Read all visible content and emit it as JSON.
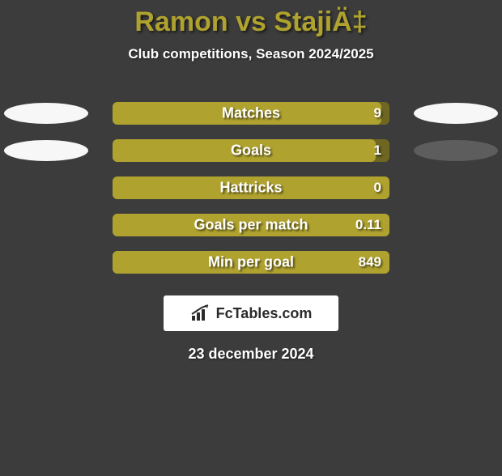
{
  "background_color": "#3c3c3c",
  "title": {
    "text": "Ramon vs StajiÄ‡",
    "color": "#afa22f",
    "fontsize": 34
  },
  "subtitle": {
    "text": "Club competitions, Season 2024/2025",
    "color": "#ffffff",
    "fontsize": 17
  },
  "bars": {
    "track_color": "#6f6721",
    "fill_color": "#afa22f",
    "label_color": "#ffffff",
    "value_color": "#ffffff",
    "rows": [
      {
        "label": "Matches",
        "value": "9",
        "fill_pct": 97,
        "left_ellipse": "#f7f7f7",
        "right_ellipse": "#f7f7f7"
      },
      {
        "label": "Goals",
        "value": "1",
        "fill_pct": 95,
        "left_ellipse": "#f7f7f7",
        "right_ellipse": "#5d5d5d"
      },
      {
        "label": "Hattricks",
        "value": "0",
        "fill_pct": 100,
        "left_ellipse": null,
        "right_ellipse": null
      },
      {
        "label": "Goals per match",
        "value": "0.11",
        "fill_pct": 100,
        "left_ellipse": null,
        "right_ellipse": null
      },
      {
        "label": "Min per goal",
        "value": "849",
        "fill_pct": 100,
        "left_ellipse": null,
        "right_ellipse": null
      }
    ]
  },
  "badge": {
    "background": "#ffffff",
    "text_color": "#2b2b2b",
    "icon_color": "#2b2b2b",
    "text": "FcTables.com"
  },
  "date": {
    "text": "23 december 2024",
    "color": "#ffffff"
  }
}
